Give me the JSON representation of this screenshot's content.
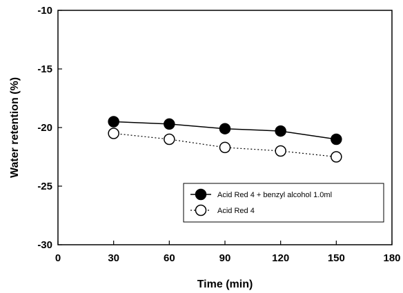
{
  "chart_data": {
    "type": "line",
    "title": "",
    "xlabel": "Time (min)",
    "ylabel": "Water retention (%)",
    "xlim": [
      0,
      180
    ],
    "ylim": [
      -30,
      -10
    ],
    "xticks": [
      0,
      30,
      60,
      90,
      120,
      150,
      180
    ],
    "yticks": [
      -30,
      -25,
      -20,
      -15,
      -10
    ],
    "xtick_labels": [
      "0",
      "30",
      "60",
      "90",
      "120",
      "150",
      "180"
    ],
    "ytick_labels": [
      "-30",
      "-25",
      "-20",
      "-15",
      "-10"
    ],
    "grid": false,
    "legend_position": "lower-right",
    "series": [
      {
        "name": "Acid Red 4 + benzyl alcohol 1.0ml",
        "x": [
          30,
          60,
          90,
          120,
          150
        ],
        "y": [
          -19.5,
          -19.7,
          -20.1,
          -20.3,
          -21.0
        ],
        "marker": "filled-circle",
        "line": "solid",
        "color": "#000000"
      },
      {
        "name": "Acid Red 4",
        "x": [
          30,
          60,
          90,
          120,
          150
        ],
        "y": [
          -20.5,
          -21.0,
          -21.7,
          -22.0,
          -22.5
        ],
        "marker": "open-circle",
        "line": "dotted",
        "color": "#000000"
      }
    ]
  }
}
